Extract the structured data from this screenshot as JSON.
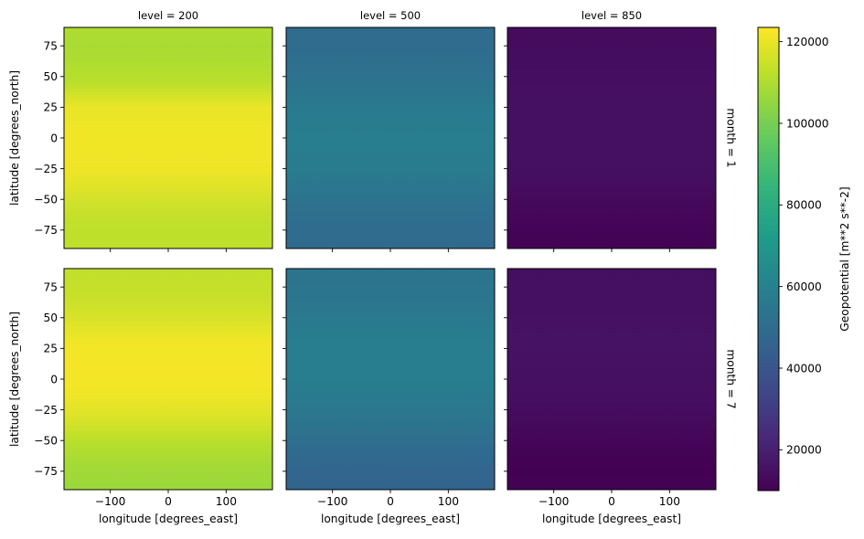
{
  "chart_data": {
    "type": "heatmap",
    "colormap": "viridis",
    "grid": false,
    "panels": [
      {
        "col_label": "level = 200",
        "row_label": "month = 1",
        "level": 200,
        "month": 1,
        "lat_profile": [
          {
            "lat": 90,
            "value": 110000
          },
          {
            "lat": 75,
            "value": 109000
          },
          {
            "lat": 60,
            "value": 110000
          },
          {
            "lat": 45,
            "value": 112000
          },
          {
            "lat": 35,
            "value": 116000
          },
          {
            "lat": 25,
            "value": 120000
          },
          {
            "lat": 0,
            "value": 121500
          },
          {
            "lat": -25,
            "value": 121000
          },
          {
            "lat": -40,
            "value": 118500
          },
          {
            "lat": -55,
            "value": 115000
          },
          {
            "lat": -70,
            "value": 113000
          },
          {
            "lat": -90,
            "value": 112500
          }
        ]
      },
      {
        "col_label": "level = 500",
        "row_label": "month = 1",
        "level": 500,
        "month": 1,
        "lat_profile": [
          {
            "lat": 90,
            "value": 50000
          },
          {
            "lat": 75,
            "value": 50000
          },
          {
            "lat": 60,
            "value": 51000
          },
          {
            "lat": 45,
            "value": 53000
          },
          {
            "lat": 25,
            "value": 56500
          },
          {
            "lat": 0,
            "value": 58000
          },
          {
            "lat": -25,
            "value": 57500
          },
          {
            "lat": -45,
            "value": 54000
          },
          {
            "lat": -60,
            "value": 51000
          },
          {
            "lat": -75,
            "value": 50000
          },
          {
            "lat": -90,
            "value": 49500
          }
        ]
      },
      {
        "col_label": "level = 850",
        "row_label": "month = 1",
        "level": 850,
        "month": 1,
        "lat_profile": [
          {
            "lat": 90,
            "value": 13500
          },
          {
            "lat": 60,
            "value": 14000
          },
          {
            "lat": 30,
            "value": 15000
          },
          {
            "lat": 0,
            "value": 15000
          },
          {
            "lat": -30,
            "value": 14500
          },
          {
            "lat": -55,
            "value": 12500
          },
          {
            "lat": -75,
            "value": 11000
          },
          {
            "lat": -90,
            "value": 10500
          }
        ]
      },
      {
        "col_label": "level = 200",
        "row_label": "month = 7",
        "level": 200,
        "month": 7,
        "lat_profile": [
          {
            "lat": 90,
            "value": 113000
          },
          {
            "lat": 70,
            "value": 114000
          },
          {
            "lat": 50,
            "value": 117000
          },
          {
            "lat": 30,
            "value": 121500
          },
          {
            "lat": 10,
            "value": 122000
          },
          {
            "lat": -10,
            "value": 121500
          },
          {
            "lat": -30,
            "value": 118000
          },
          {
            "lat": -50,
            "value": 112000
          },
          {
            "lat": -70,
            "value": 108000
          },
          {
            "lat": -90,
            "value": 106500
          }
        ]
      },
      {
        "col_label": "level = 500",
        "row_label": "month = 7",
        "level": 500,
        "month": 7,
        "lat_profile": [
          {
            "lat": 90,
            "value": 53000
          },
          {
            "lat": 60,
            "value": 55000
          },
          {
            "lat": 30,
            "value": 58000
          },
          {
            "lat": 0,
            "value": 58000
          },
          {
            "lat": -30,
            "value": 55000
          },
          {
            "lat": -60,
            "value": 49000
          },
          {
            "lat": -75,
            "value": 47000
          },
          {
            "lat": -90,
            "value": 46500
          }
        ]
      },
      {
        "col_label": "level = 850",
        "row_label": "month = 7",
        "level": 850,
        "month": 7,
        "lat_profile": [
          {
            "lat": 90,
            "value": 14500
          },
          {
            "lat": 60,
            "value": 15000
          },
          {
            "lat": 30,
            "value": 15500
          },
          {
            "lat": 0,
            "value": 15000
          },
          {
            "lat": -30,
            "value": 13500
          },
          {
            "lat": -60,
            "value": 10500
          },
          {
            "lat": -75,
            "value": 10000
          },
          {
            "lat": -90,
            "value": 10500
          }
        ]
      }
    ],
    "xlabel": "longitude [degrees_east]",
    "ylabel": "latitude [degrees_north]",
    "xlim": [
      -180,
      180
    ],
    "ylim": [
      -90,
      90
    ],
    "xticks": [
      -100,
      0,
      100
    ],
    "xtick_labels": [
      "−100",
      "0",
      "100"
    ],
    "yticks": [
      75,
      50,
      25,
      0,
      -25,
      -50,
      -75
    ],
    "ytick_labels": [
      "75",
      "50",
      "25",
      "0",
      "−25",
      "−50",
      "−75"
    ],
    "colorbar": {
      "label": "Geopotential [m**2 s**-2]",
      "vmin": 10000,
      "vmax": 123500,
      "ticks": [
        20000,
        40000,
        60000,
        80000,
        100000,
        120000
      ],
      "tick_labels": [
        "20000",
        "40000",
        "60000",
        "80000",
        "100000",
        "120000"
      ]
    }
  }
}
